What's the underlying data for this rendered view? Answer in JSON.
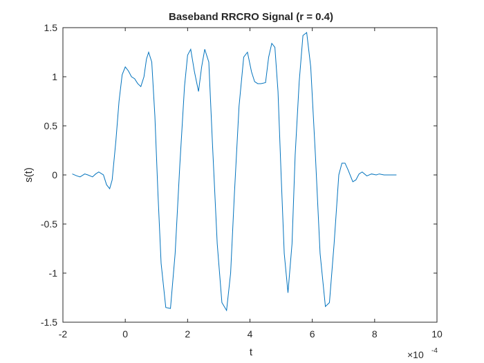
{
  "chart_data": {
    "type": "line",
    "title": "Baseband RRCRO Signal (r = 0.4)",
    "xlabel": "t",
    "ylabel": "s(t)",
    "x_exponent_label": "×10",
    "x_exponent": "-4",
    "xlim": [
      -2,
      10
    ],
    "ylim": [
      -1.5,
      1.5
    ],
    "xticks": [
      "-2",
      "0",
      "2",
      "4",
      "6",
      "8",
      "10"
    ],
    "yticks": [
      "1.5",
      "1",
      "0.5",
      "0",
      "-0.5",
      "-1",
      "-1.5"
    ],
    "grid": false,
    "line_color": "#0072BD",
    "series": [
      {
        "x": [
          -1.7,
          -1.55,
          -1.45,
          -1.3,
          -1.2,
          -1.05,
          -0.95,
          -0.85,
          -0.7,
          -0.6,
          -0.5,
          -0.42,
          -0.3,
          -0.2,
          -0.1,
          0.0,
          0.1,
          0.2,
          0.3,
          0.4,
          0.5,
          0.6,
          0.68,
          0.75,
          0.85,
          0.95,
          1.05,
          1.15,
          1.3,
          1.45,
          1.6,
          1.75,
          1.9,
          2.0,
          2.1,
          2.22,
          2.35,
          2.45,
          2.55,
          2.68,
          2.8,
          2.95,
          3.1,
          3.25,
          3.38,
          3.5,
          3.65,
          3.8,
          3.92,
          4.05,
          4.15,
          4.25,
          4.35,
          4.5,
          4.6,
          4.7,
          4.8,
          4.9,
          5.0,
          5.1,
          5.22,
          5.35,
          5.45,
          5.58,
          5.7,
          5.82,
          5.95,
          6.1,
          6.25,
          6.42,
          6.55,
          6.7,
          6.85,
          6.95,
          7.05,
          7.15,
          7.3,
          7.4,
          7.5,
          7.6,
          7.75,
          7.9,
          8.05,
          8.15,
          8.3,
          8.5,
          8.7
        ],
        "y": [
          0.01,
          -0.01,
          -0.02,
          0.01,
          0.0,
          -0.02,
          0.01,
          0.03,
          0.0,
          -0.1,
          -0.14,
          -0.05,
          0.35,
          0.75,
          1.02,
          1.1,
          1.06,
          1.0,
          0.98,
          0.93,
          0.9,
          1.0,
          1.18,
          1.25,
          1.15,
          0.6,
          -0.2,
          -0.9,
          -1.35,
          -1.36,
          -0.8,
          0.1,
          0.9,
          1.22,
          1.28,
          1.05,
          0.85,
          1.1,
          1.28,
          1.15,
          0.3,
          -0.7,
          -1.3,
          -1.38,
          -1.0,
          -0.2,
          0.7,
          1.2,
          1.25,
          1.05,
          0.95,
          0.93,
          0.93,
          0.94,
          1.2,
          1.34,
          1.3,
          0.85,
          0.0,
          -0.8,
          -1.2,
          -0.7,
          0.2,
          0.95,
          1.42,
          1.45,
          1.1,
          0.2,
          -0.8,
          -1.34,
          -1.3,
          -0.7,
          0.0,
          0.12,
          0.12,
          0.05,
          -0.07,
          -0.05,
          0.01,
          0.03,
          -0.01,
          0.01,
          0.0,
          0.01,
          0.0,
          0.0,
          0.0
        ]
      }
    ]
  }
}
